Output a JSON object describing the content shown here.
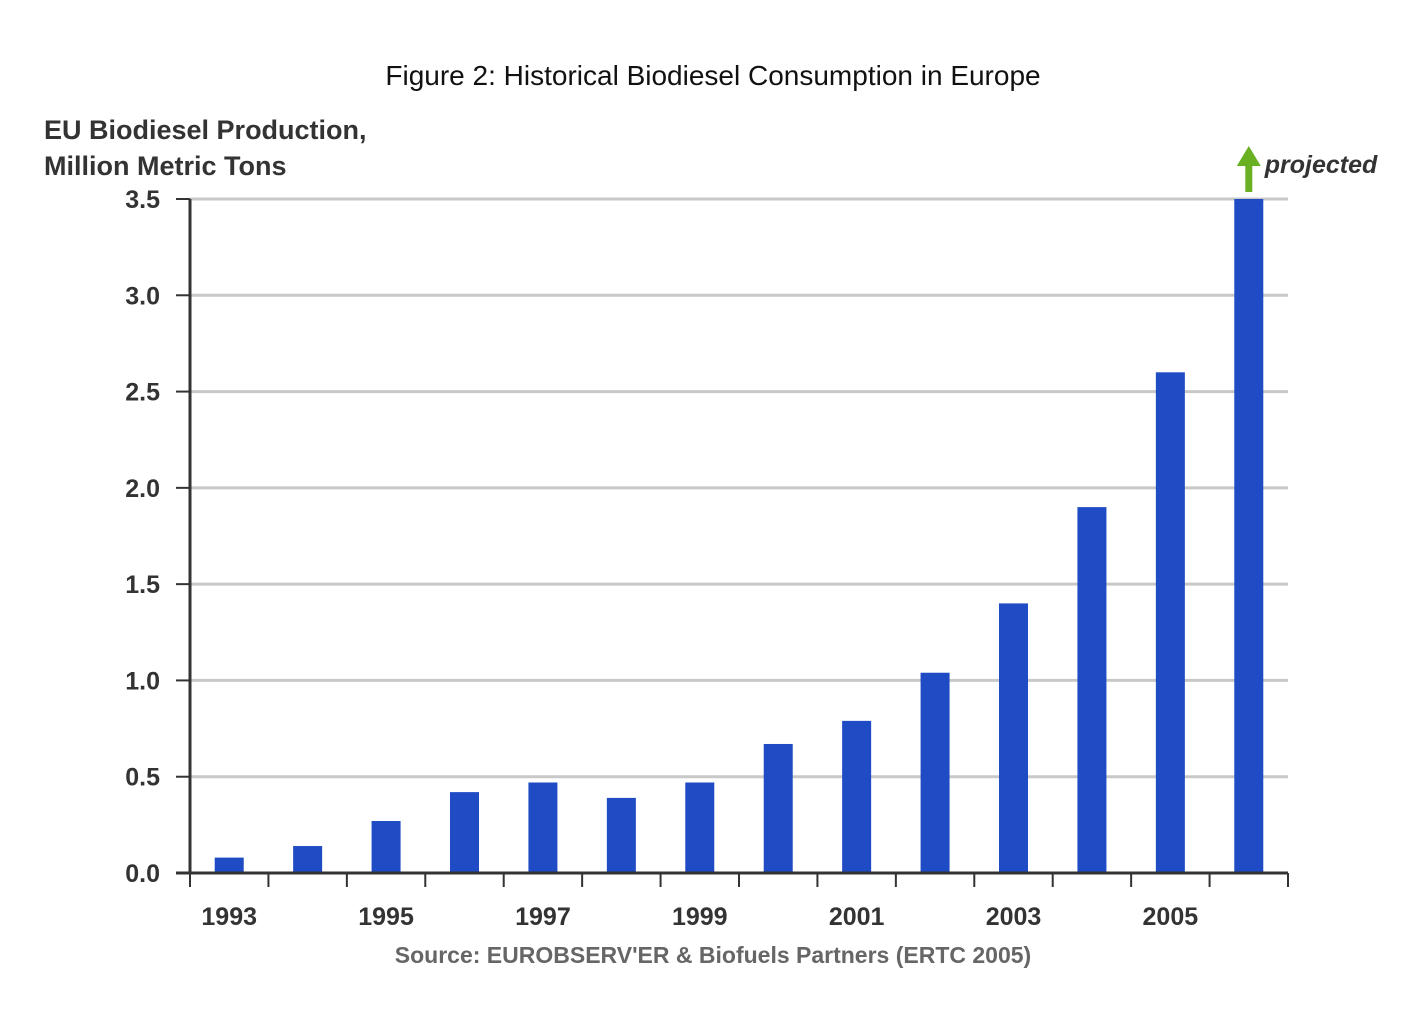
{
  "figure": {
    "title": "Figure 2: Historical Biodiesel Consumption in Europe",
    "source": "Source: EUROBSERV'ER & Biofuels Partners (ERTC 2005)"
  },
  "chart_data": {
    "type": "bar",
    "ylabel_lines": [
      "EU Biodiesel Production,",
      "Million Metric Tons"
    ],
    "xlabel": "",
    "categories": [
      "1993",
      "1994",
      "1995",
      "1996",
      "1997",
      "1998",
      "1999",
      "2000",
      "2001",
      "2002",
      "2003",
      "2004",
      "2005",
      "2006"
    ],
    "x_tick_labels": [
      "1993",
      "1995",
      "1997",
      "1999",
      "2001",
      "2003",
      "2005"
    ],
    "values": [
      0.08,
      0.14,
      0.27,
      0.42,
      0.47,
      0.39,
      0.47,
      0.67,
      0.79,
      1.04,
      1.4,
      1.9,
      2.6,
      3.5
    ],
    "ylim": [
      0,
      3.5
    ],
    "yticks": [
      "0.0",
      "0.5",
      "1.0",
      "1.5",
      "2.0",
      "2.5",
      "3.0",
      "3.5"
    ],
    "grid": true,
    "bar_color": "#1f4bc4",
    "annotation": {
      "text": "projected",
      "arrow_color": "#6ab023",
      "target_category": "2006"
    }
  }
}
